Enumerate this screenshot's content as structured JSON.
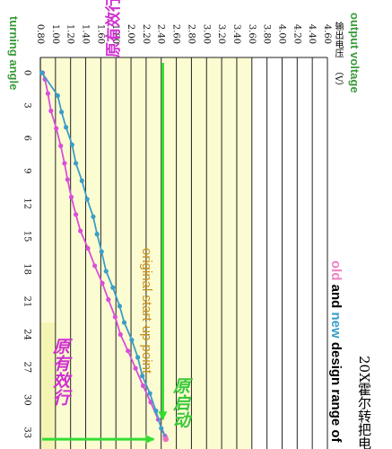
{
  "page": {
    "title": "20X霍尔转把电",
    "legend": {
      "old": "old",
      "and": "and",
      "new": "new",
      "rest": "design range of"
    },
    "y_axis_en": "output voltage",
    "y_axis_cn": "输出电压",
    "y_axis_unit": "（V）",
    "x_axis_en": "turning angle",
    "annotations": {
      "original_range": "原有效行程（电压）",
      "start_point_en": "original start-up point",
      "start_point_cn": "原启动",
      "range_cn": "原有效行"
    }
  },
  "colors": {
    "background": "#ffffff",
    "band": "#fcfcd2",
    "grid": "#222222",
    "old_series": "#d94fd9",
    "new_series": "#3a9ec8",
    "green_arrow": "#33dd33",
    "axis_label": "#3a9a3a"
  },
  "chart_data": {
    "type": "line",
    "orientation": "rotated-90-counterclockwise",
    "x_label": "turning angle",
    "y_label": "输出电压（V）",
    "x_ticks": [
      "0",
      "3",
      "6",
      "9",
      "12",
      "15",
      "18",
      "21",
      "24",
      "27",
      "30",
      "33"
    ],
    "y_ticks": [
      "0.80",
      "1.00",
      "1.20",
      "1.40",
      "1.60",
      "1.80",
      "2.00",
      "2.20",
      "2.40",
      "2.60",
      "2.80",
      "3.00",
      "3.20",
      "3.40",
      "3.60",
      "3.80",
      "4.00",
      "4.20",
      "4.40",
      "4.60"
    ],
    "xlim": [
      -1.4,
      34.5
    ],
    "ylim": [
      0.8,
      4.6
    ],
    "highlight_band_y": [
      0.8,
      3.6
    ],
    "grid": true,
    "series": [
      {
        "name": "old",
        "color": "#d94fd9",
        "x": [
          0,
          0.6,
          1.9,
          3.5,
          5.1,
          6.7,
          8.3,
          9.8,
          11.4,
          13.0,
          14.5,
          16.1,
          17.7,
          19.3,
          20.8,
          22.4,
          24.0,
          25.5,
          27.1,
          28.7,
          30.2,
          31.8,
          33.3
        ],
        "y": [
          0.83,
          0.86,
          0.9,
          0.94,
          1.01,
          1.07,
          1.12,
          1.16,
          1.21,
          1.27,
          1.33,
          1.43,
          1.52,
          1.62,
          1.7,
          1.79,
          1.86,
          1.96,
          2.06,
          2.16,
          2.26,
          2.36,
          2.45
        ]
      },
      {
        "name": "new",
        "color": "#3a9ec8",
        "x": [
          0,
          2.1,
          3.6,
          5.0,
          6.6,
          8.3,
          9.9,
          11.6,
          13.2,
          14.8,
          16.4,
          18.2,
          19.7,
          21.4,
          22.9,
          24.5,
          26.1,
          27.8,
          29.4,
          31.0,
          32.6,
          33.5
        ],
        "y": [
          0.82,
          1.03,
          1.08,
          1.14,
          1.22,
          1.27,
          1.35,
          1.42,
          1.5,
          1.55,
          1.61,
          1.67,
          1.76,
          1.85,
          1.91,
          2.01,
          2.09,
          2.15,
          2.25,
          2.33,
          2.4,
          2.46
        ]
      }
    ]
  }
}
